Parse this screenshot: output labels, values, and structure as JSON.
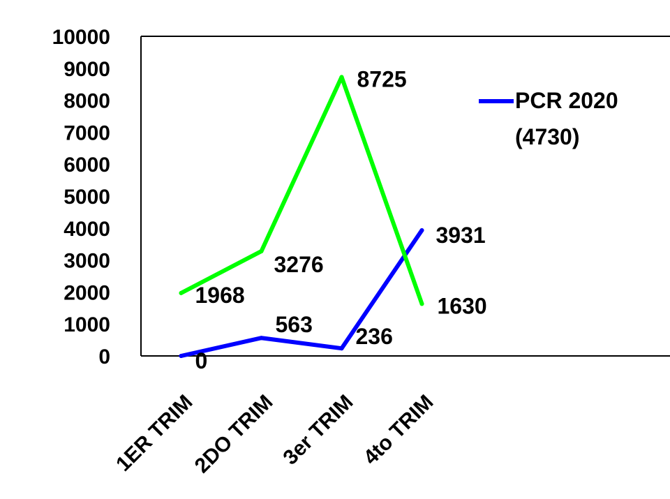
{
  "chart_data": {
    "type": "line",
    "categories": [
      "1ER TRIM",
      "2DO TRIM",
      "3er TRIM",
      "4to TRIM"
    ],
    "series": [
      {
        "name": "PCR 2020 (4730)",
        "color": "#0000ff",
        "values": [
          0,
          563,
          236,
          3931
        ],
        "labels": [
          "0",
          "563",
          "236",
          "3931"
        ]
      },
      {
        "color": "#00ff00",
        "values": [
          1968,
          3276,
          8725,
          1630
        ],
        "labels": [
          "1968",
          "3276",
          "8725",
          "1630"
        ]
      }
    ],
    "ylim": [
      0,
      10000
    ],
    "yticks": [
      "0",
      "1000",
      "2000",
      "3000",
      "4000",
      "5000",
      "6000",
      "7000",
      "8000",
      "9000",
      "10000"
    ],
    "grid": false,
    "legend_position": "top-right"
  },
  "legend": {
    "line1": "PCR 2020",
    "line2": "(4730)"
  }
}
